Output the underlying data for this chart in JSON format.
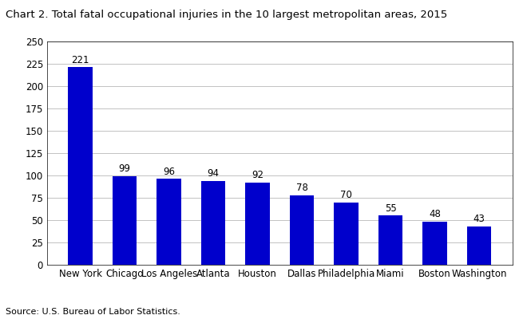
{
  "title": "Chart 2. Total fatal occupational injuries in the 10 largest metropolitan areas, 2015",
  "categories": [
    "New York",
    "Chicago",
    "Los Angeles",
    "Atlanta",
    "Houston",
    "Dallas",
    "Philadelphia",
    "Miami",
    "Boston",
    "Washington"
  ],
  "values": [
    221,
    99,
    96,
    94,
    92,
    78,
    70,
    55,
    48,
    43
  ],
  "bar_color": "#0000cc",
  "ylim": [
    0,
    250
  ],
  "yticks": [
    0,
    25,
    50,
    75,
    100,
    125,
    150,
    175,
    200,
    225,
    250
  ],
  "source": "Source: U.S. Bureau of Labor Statistics.",
  "title_fontsize": 9.5,
  "tick_fontsize": 8.5,
  "source_fontsize": 8,
  "bar_width": 0.55,
  "annotation_fontsize": 8.5
}
